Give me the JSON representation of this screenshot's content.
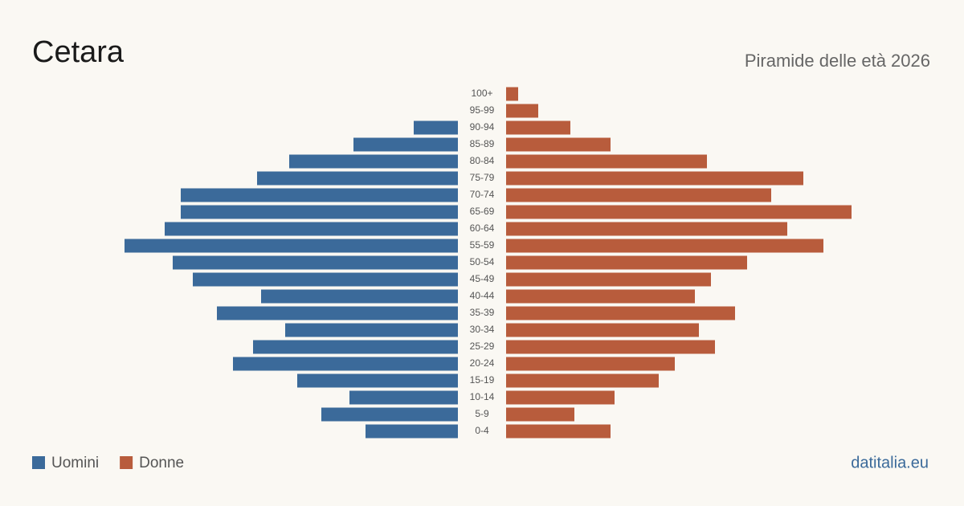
{
  "chart_data": {
    "type": "pyramid",
    "title": "Cetara",
    "subtitle": "Piramide delle età 2026",
    "source": "datitalia.eu",
    "categories": [
      "0-4",
      "5-9",
      "10-14",
      "15-19",
      "20-24",
      "25-29",
      "30-34",
      "35-39",
      "40-44",
      "45-49",
      "50-54",
      "55-59",
      "60-64",
      "65-69",
      "70-74",
      "75-79",
      "80-84",
      "85-89",
      "90-94",
      "95-99",
      "100+"
    ],
    "series": [
      {
        "name": "Uomini",
        "color": "#3b6a9a",
        "values": [
          23,
          34,
          27,
          40,
          56,
          51,
          43,
          60,
          49,
          66,
          71,
          83,
          73,
          69,
          69,
          50,
          42,
          26,
          11,
          0,
          0
        ]
      },
      {
        "name": "Donne",
        "color": "#b85c3c",
        "values": [
          26,
          17,
          27,
          38,
          42,
          52,
          48,
          57,
          47,
          51,
          60,
          79,
          70,
          86,
          66,
          74,
          50,
          26,
          16,
          8,
          3
        ]
      }
    ]
  }
}
